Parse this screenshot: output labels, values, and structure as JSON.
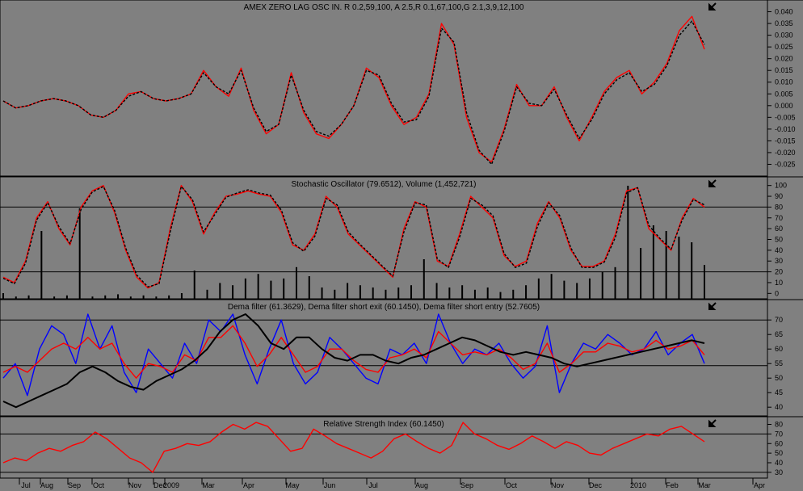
{
  "chart_data": [
    {
      "type": "line",
      "title": "AMEX ZERO LAG OSC IN. R 0.2,59,100, A 2.5,R 0.1,67,100,G 2.1,3,9,12,100",
      "ylim": [
        -0.03,
        0.045
      ],
      "yticks": [
        0.04,
        0.035,
        0.03,
        0.025,
        0.02,
        0.015,
        0.01,
        0.005,
        0.0,
        -0.005,
        -0.01,
        -0.015,
        -0.02,
        -0.025
      ],
      "ytick_labels": [
        "0.040",
        "0.035",
        "0.030",
        "0.025",
        "0.020",
        "0.015",
        "0.010",
        "0.005",
        "0.000",
        "-0.005",
        "-0.010",
        "-0.015",
        "-0.020",
        "-0.025"
      ],
      "series": [
        {
          "color": "#ff0000",
          "style": "solid",
          "values": [
            0.002,
            -0.001,
            0.0,
            0.002,
            0.003,
            0.002,
            0.0,
            -0.004,
            -0.005,
            -0.002,
            0.005,
            0.006,
            0.003,
            0.002,
            0.003,
            0.005,
            0.015,
            0.008,
            0.004,
            0.016,
            -0.002,
            -0.012,
            -0.008,
            0.014,
            -0.003,
            -0.012,
            -0.014,
            -0.008,
            0.0,
            0.016,
            0.012,
            0.0,
            -0.008,
            -0.005,
            0.005,
            0.035,
            0.026,
            -0.005,
            -0.02,
            -0.024,
            -0.01,
            0.009,
            0.0,
            0.0,
            0.008,
            -0.005,
            -0.015,
            -0.005,
            0.006,
            0.012,
            0.015,
            0.005,
            0.01,
            0.018,
            0.032,
            0.038,
            0.024
          ]
        },
        {
          "color": "#000000",
          "style": "dashed",
          "values": [
            0.002,
            -0.001,
            0.0,
            0.002,
            0.003,
            0.002,
            0.0,
            -0.004,
            -0.005,
            -0.002,
            0.004,
            0.006,
            0.003,
            0.002,
            0.003,
            0.005,
            0.014,
            0.008,
            0.005,
            0.015,
            -0.001,
            -0.011,
            -0.008,
            0.013,
            -0.002,
            -0.011,
            -0.013,
            -0.008,
            0.0,
            0.015,
            0.013,
            0.001,
            -0.007,
            -0.006,
            0.004,
            0.033,
            0.027,
            -0.003,
            -0.019,
            -0.025,
            -0.011,
            0.008,
            0.001,
            0.0,
            0.007,
            -0.004,
            -0.014,
            -0.006,
            0.005,
            0.011,
            0.014,
            0.006,
            0.009,
            0.017,
            0.03,
            0.036,
            0.026
          ]
        }
      ]
    },
    {
      "type": "line",
      "title": "Stochastic Oscillator (79.6512), Volume (1,452,721)",
      "ylim": [
        -5,
        108
      ],
      "yticks": [
        100,
        90,
        80,
        70,
        60,
        50,
        40,
        30,
        20,
        10,
        0
      ],
      "ytick_labels": [
        "100",
        "90",
        "80",
        "70",
        "60",
        "50",
        "40",
        "30",
        "20",
        "10",
        "0"
      ],
      "hlines": [
        80,
        20
      ],
      "series": [
        {
          "color": "#ff0000",
          "style": "solid",
          "values": [
            15,
            10,
            30,
            70,
            85,
            60,
            45,
            80,
            95,
            100,
            75,
            40,
            15,
            5,
            10,
            60,
            100,
            85,
            55,
            75,
            90,
            92,
            95,
            92,
            90,
            75,
            45,
            40,
            55,
            90,
            80,
            55,
            45,
            35,
            25,
            15,
            60,
            85,
            80,
            30,
            25,
            55,
            90,
            80,
            70,
            35,
            25,
            30,
            65,
            85,
            70,
            40,
            25,
            25,
            30,
            55,
            95,
            98,
            60,
            50,
            40,
            70,
            88,
            80
          ]
        },
        {
          "color": "#000000",
          "style": "dashed",
          "values": [
            14,
            9,
            28,
            68,
            84,
            62,
            46,
            78,
            94,
            99,
            77,
            42,
            17,
            6,
            9,
            57,
            99,
            87,
            57,
            73,
            89,
            93,
            96,
            93,
            91,
            77,
            47,
            39,
            53,
            88,
            82,
            57,
            46,
            36,
            26,
            16,
            57,
            84,
            82,
            32,
            24,
            52,
            88,
            82,
            72,
            37,
            24,
            28,
            62,
            84,
            72,
            42,
            24,
            24,
            29,
            52,
            93,
            98,
            63,
            51,
            41,
            68,
            87,
            82
          ]
        }
      ],
      "volume": [
        5,
        2,
        3,
        60,
        2,
        3,
        80,
        2,
        3,
        4,
        2,
        3,
        2,
        3,
        5,
        25,
        8,
        14,
        12,
        18,
        22,
        16,
        18,
        28,
        20,
        10,
        8,
        14,
        12,
        10,
        8,
        10,
        12,
        35,
        14,
        10,
        12,
        8,
        10,
        6,
        8,
        12,
        18,
        22,
        16,
        14,
        18,
        24,
        28,
        100,
        45,
        65,
        60,
        55,
        50,
        30
      ]
    },
    {
      "type": "line",
      "title": "Dema filter (61.3629), Dema filter short exit (60.1450), Dema filter short entry (52.7605)",
      "ylim": [
        37,
        77
      ],
      "yticks": [
        70,
        65,
        60,
        55,
        50,
        45,
        40
      ],
      "ytick_labels": [
        "70",
        "65",
        "60",
        "55",
        "50",
        "45",
        "40"
      ],
      "hlines": [
        70,
        54.3
      ],
      "series": [
        {
          "color": "#0000ff",
          "style": "solid",
          "values": [
            50,
            55,
            44,
            60,
            68,
            65,
            55,
            72,
            60,
            68,
            52,
            45,
            60,
            55,
            50,
            62,
            55,
            70,
            66,
            72,
            58,
            48,
            60,
            70,
            55,
            48,
            52,
            64,
            60,
            55,
            50,
            48,
            60,
            58,
            62,
            55,
            72,
            62,
            55,
            60,
            58,
            62,
            55,
            50,
            54,
            68,
            45,
            55,
            62,
            60,
            65,
            62,
            58,
            60,
            66,
            58,
            62,
            65,
            55
          ]
        },
        {
          "color": "#ff0000",
          "style": "solid",
          "values": [
            52,
            54,
            52,
            56,
            60,
            62,
            60,
            64,
            60,
            62,
            55,
            50,
            55,
            54,
            52,
            58,
            56,
            64,
            64,
            68,
            62,
            54,
            58,
            64,
            58,
            52,
            54,
            60,
            60,
            56,
            53,
            52,
            57,
            58,
            60,
            57,
            66,
            62,
            58,
            59,
            58,
            60,
            57,
            53,
            55,
            62,
            52,
            55,
            59,
            59,
            62,
            61,
            59,
            60,
            63,
            60,
            61,
            63,
            58
          ]
        },
        {
          "color": "#000000",
          "style": "solid",
          "values": [
            42,
            40,
            42,
            44,
            46,
            48,
            52,
            54,
            52,
            49,
            47,
            46,
            49,
            51,
            53,
            56,
            60,
            66,
            70,
            72,
            68,
            62,
            60,
            64,
            64,
            60,
            57,
            56,
            58,
            58,
            56,
            55,
            57,
            58,
            60,
            62,
            64,
            63,
            61,
            59,
            58,
            59,
            58,
            57,
            55,
            54,
            55,
            56,
            57,
            58,
            59,
            60,
            61,
            62,
            63,
            62
          ]
        }
      ]
    },
    {
      "type": "line",
      "title": "Relative Strength Index (60.1450)",
      "ylim": [
        24,
        88
      ],
      "yticks": [
        80,
        70,
        60,
        50,
        40,
        30
      ],
      "ytick_labels": [
        "80",
        "70",
        "60",
        "50",
        "40",
        "30"
      ],
      "hlines": [
        70,
        30
      ],
      "series": [
        {
          "color": "#ff0000",
          "style": "solid",
          "values": [
            40,
            45,
            42,
            50,
            55,
            52,
            58,
            62,
            72,
            65,
            55,
            45,
            40,
            30,
            52,
            55,
            60,
            58,
            62,
            72,
            80,
            75,
            82,
            78,
            65,
            52,
            55,
            75,
            68,
            60,
            55,
            50,
            45,
            52,
            65,
            70,
            62,
            55,
            50,
            58,
            82,
            70,
            65,
            58,
            54,
            60,
            68,
            62,
            55,
            62,
            58,
            50,
            48,
            55,
            60,
            65,
            70,
            68,
            75,
            78,
            70,
            62
          ]
        }
      ]
    }
  ],
  "x_axis": {
    "labels": [
      "Jul",
      "Aug",
      "Sep",
      "Oct",
      "Nov",
      "Dec",
      "2009",
      "Mar",
      "Apr",
      "May",
      "Jun",
      "Jul",
      "Aug",
      "Sep",
      "Oct",
      "Nov",
      "Dec",
      "2010",
      "Feb",
      "Mar",
      "Apr"
    ]
  },
  "colors": {
    "background": "#808080",
    "grid": "#000000",
    "marker": "#000000"
  },
  "icons": [
    "arrow-marker-icon"
  ]
}
